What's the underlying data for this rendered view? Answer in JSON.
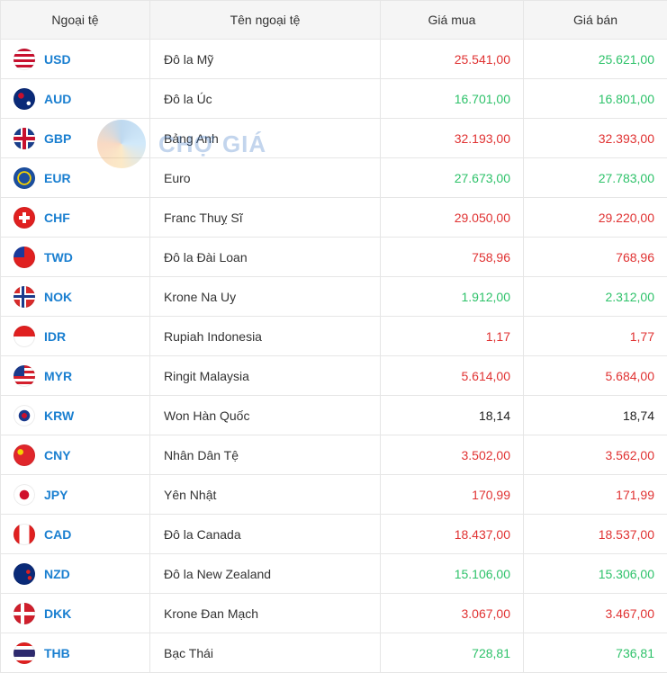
{
  "headers": [
    "Ngoại tệ",
    "Tên ngoại tệ",
    "Giá mua",
    "Giá bán"
  ],
  "watermark": {
    "text": "CHỢ GIÁ"
  },
  "rows": [
    {
      "code": "USD",
      "name": "Đô la Mỹ",
      "buy": "25.541,00",
      "sell": "25.621,00",
      "buy_trend": "down",
      "sell_trend": "up",
      "flag_icon": "us-flag-icon"
    },
    {
      "code": "AUD",
      "name": "Đô la Úc",
      "buy": "16.701,00",
      "sell": "16.801,00",
      "buy_trend": "up",
      "sell_trend": "up",
      "flag_icon": "au-flag-icon"
    },
    {
      "code": "GBP",
      "name": "Bảng Anh",
      "buy": "32.193,00",
      "sell": "32.393,00",
      "buy_trend": "down",
      "sell_trend": "down",
      "flag_icon": "gb-flag-icon"
    },
    {
      "code": "EUR",
      "name": "Euro",
      "buy": "27.673,00",
      "sell": "27.783,00",
      "buy_trend": "up",
      "sell_trend": "up",
      "flag_icon": "eu-flag-icon"
    },
    {
      "code": "CHF",
      "name": "Franc Thuỵ Sĩ",
      "buy": "29.050,00",
      "sell": "29.220,00",
      "buy_trend": "down",
      "sell_trend": "down",
      "flag_icon": "ch-flag-icon"
    },
    {
      "code": "TWD",
      "name": "Đô la Đài Loan",
      "buy": "758,96",
      "sell": "768,96",
      "buy_trend": "down",
      "sell_trend": "down",
      "flag_icon": "tw-flag-icon"
    },
    {
      "code": "NOK",
      "name": "Krone Na Uy",
      "buy": "1.912,00",
      "sell": "2.312,00",
      "buy_trend": "up",
      "sell_trend": "up",
      "flag_icon": "no-flag-icon"
    },
    {
      "code": "IDR",
      "name": "Rupiah Indonesia",
      "buy": "1,17",
      "sell": "1,77",
      "buy_trend": "down",
      "sell_trend": "down",
      "flag_icon": "id-flag-icon"
    },
    {
      "code": "MYR",
      "name": "Ringit Malaysia",
      "buy": "5.614,00",
      "sell": "5.684,00",
      "buy_trend": "down",
      "sell_trend": "down",
      "flag_icon": "my-flag-icon"
    },
    {
      "code": "KRW",
      "name": "Won Hàn Quốc",
      "buy": "18,14",
      "sell": "18,74",
      "buy_trend": "same",
      "sell_trend": "same",
      "flag_icon": "kr-flag-icon"
    },
    {
      "code": "CNY",
      "name": "Nhân Dân Tệ",
      "buy": "3.502,00",
      "sell": "3.562,00",
      "buy_trend": "down",
      "sell_trend": "down",
      "flag_icon": "cn-flag-icon"
    },
    {
      "code": "JPY",
      "name": "Yên Nhật",
      "buy": "170,99",
      "sell": "171,99",
      "buy_trend": "down",
      "sell_trend": "down",
      "flag_icon": "jp-flag-icon"
    },
    {
      "code": "CAD",
      "name": "Đô la Canada",
      "buy": "18.437,00",
      "sell": "18.537,00",
      "buy_trend": "down",
      "sell_trend": "down",
      "flag_icon": "ca-flag-icon"
    },
    {
      "code": "NZD",
      "name": "Đô la New Zealand",
      "buy": "15.106,00",
      "sell": "15.306,00",
      "buy_trend": "up",
      "sell_trend": "up",
      "flag_icon": "nz-flag-icon"
    },
    {
      "code": "DKK",
      "name": "Krone Đan Mạch",
      "buy": "3.067,00",
      "sell": "3.467,00",
      "buy_trend": "down",
      "sell_trend": "down",
      "flag_icon": "dk-flag-icon"
    },
    {
      "code": "THB",
      "name": "Bạc Thái",
      "buy": "728,81",
      "sell": "736,81",
      "buy_trend": "up",
      "sell_trend": "up",
      "flag_icon": "th-flag-icon"
    }
  ]
}
